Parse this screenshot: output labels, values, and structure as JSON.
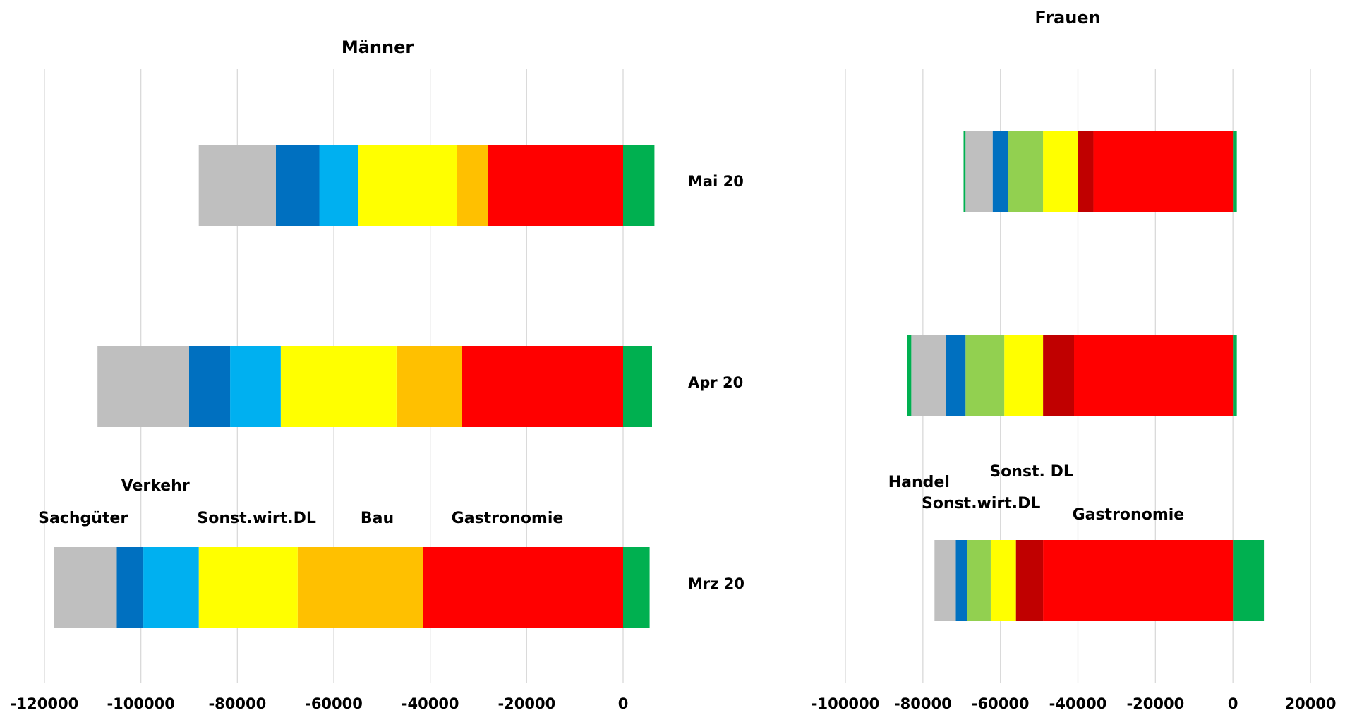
{
  "chart_data": [
    {
      "type": "bar",
      "orientation": "horizontal",
      "stacked": true,
      "title": "Männer",
      "categories": [
        "Mai 20",
        "Apr 20",
        "Mrz 20"
      ],
      "x_ticks": [
        -120000,
        -100000,
        -80000,
        -60000,
        -40000,
        -20000,
        0
      ],
      "xlim": [
        -120000,
        7000
      ],
      "grid": true,
      "legend": "none",
      "annotations": [
        {
          "text": "Verkehr",
          "x": -97000,
          "category": "Mrz 20",
          "row": 1
        },
        {
          "text": "Sachgüter",
          "x": -112000,
          "category": "Mrz 20",
          "row": 0
        },
        {
          "text": "Sonst.wirt.DL",
          "x": -76000,
          "category": "Mrz 20",
          "row": 0
        },
        {
          "text": "Bau",
          "x": -51000,
          "category": "Mrz 20",
          "row": 0
        },
        {
          "text": "Gastronomie",
          "x": -24000,
          "category": "Mrz 20",
          "row": 0
        }
      ],
      "series": [
        {
          "color": "#00b050",
          "values": [
            6500,
            6000,
            5500
          ]
        },
        {
          "name": "Gastronomie",
          "color": "#ff0000",
          "values": [
            -28000,
            -33500,
            -41500
          ]
        },
        {
          "name": "Bau",
          "color": "#ffc000",
          "values": [
            -6500,
            -13500,
            -26000
          ]
        },
        {
          "color": "#ffff00",
          "values": [
            -20500,
            -24000,
            -20500
          ]
        },
        {
          "name": "Sonst.wirt.DL",
          "color": "#00b0f0",
          "values": [
            -8000,
            -10500,
            -11500
          ]
        },
        {
          "name": "Verkehr",
          "color": "#0070c0",
          "values": [
            -9000,
            -8500,
            -5500
          ]
        },
        {
          "name": "Sachgüter",
          "color": "#bfbfbf",
          "values": [
            -16000,
            -19000,
            -13000
          ]
        }
      ]
    },
    {
      "type": "bar",
      "orientation": "horizontal",
      "stacked": true,
      "title": "Frauen",
      "categories": [
        "Mai 20",
        "Apr 20",
        "Mrz 20"
      ],
      "x_ticks": [
        -100000,
        -80000,
        -60000,
        -40000,
        -20000,
        0,
        20000
      ],
      "xlim": [
        -100000,
        20000
      ],
      "grid": true,
      "legend": "none",
      "annotations": [
        {
          "text": "Handel",
          "x": -81000,
          "category": "Mrz 20",
          "row": 1
        },
        {
          "text": "Sonst. DL",
          "x": -52000,
          "category": "Mrz 20",
          "row": 2
        },
        {
          "text": "Sonst.wirt.DL",
          "x": -65000,
          "category": "Mrz 20",
          "row": 0
        },
        {
          "text": "Gastronomie",
          "x": -27000,
          "category": "Mrz 20",
          "row": -1
        }
      ],
      "series": [
        {
          "color": "#00b050",
          "values": [
            1000,
            1000,
            8000
          ]
        },
        {
          "name": "Gastronomie",
          "color": "#ff0000",
          "values": [
            -36000,
            -41000,
            -49000
          ]
        },
        {
          "color": "#c00000",
          "values": [
            -4000,
            -8000,
            -7000
          ]
        },
        {
          "name": "Sonst. DL",
          "color": "#ffff00",
          "values": [
            -9000,
            -10000,
            -6500
          ]
        },
        {
          "name": "Sonst.wirt.DL",
          "color": "#92d050",
          "values": [
            -9000,
            -10000,
            -6000
          ]
        },
        {
          "name": "Handel",
          "color": "#0070c0",
          "values": [
            -4000,
            -5000,
            -3000
          ]
        },
        {
          "color": "#bfbfbf",
          "values": [
            -7000,
            -9000,
            -5500
          ]
        },
        {
          "color": "#00b050",
          "values": [
            -500,
            -1000,
            0
          ]
        }
      ]
    }
  ]
}
